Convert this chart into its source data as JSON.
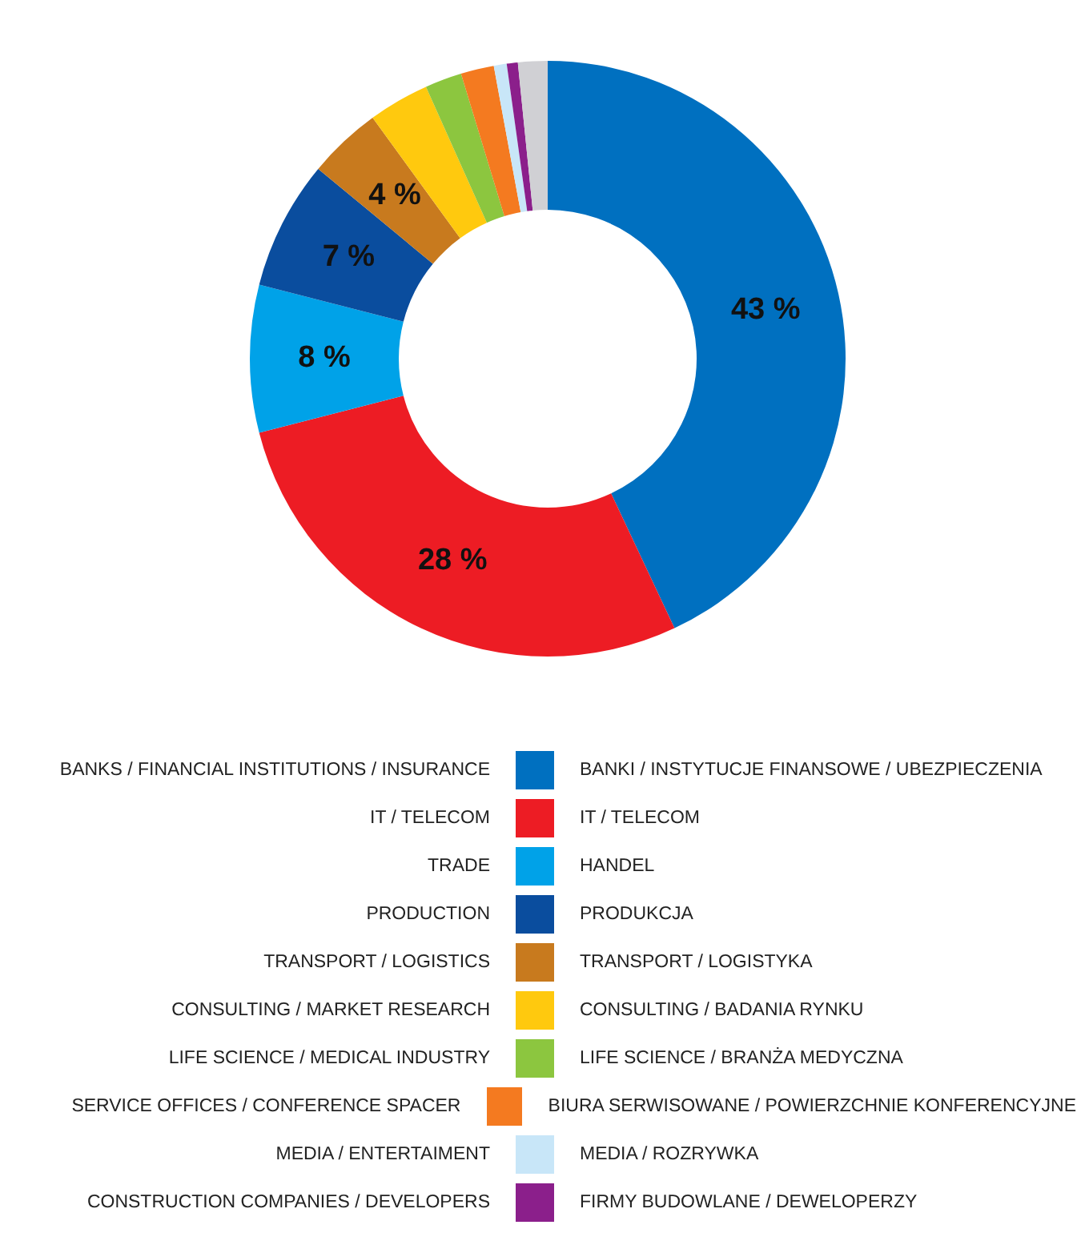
{
  "chart_data": {
    "type": "donut",
    "categories": [
      "BANKS / FINANCIAL INSTITUTIONS / INSURANCE",
      "IT / TELECOM",
      "TRADE",
      "PRODUCTION",
      "TRANSPORT / LOGISTICS",
      "CONSULTING / MARKET RESEARCH",
      "LIFE SCIENCE / MEDICAL INDUSTRY",
      "SERVICE OFFICES / CONFERENCE SPACER",
      "MEDIA / ENTERTAIMENT",
      "CONSTRUCTION COMPANIES / DEVELOPERS",
      null
    ],
    "y2_categories": [
      "BANKI / INSTYTUCJE FINANSOWE / UBEZPIECZENIA",
      "IT / TELECOM",
      "HANDEL",
      "PRODUKCJA",
      "TRANSPORT / LOGISTYKA",
      "CONSULTING / BADANIA RYNKU",
      "LIFE SCIENCE / BRANŻA MEDYCZNA",
      "BIURA SERWISOWANE / POWIERZCHNIE KONFERENCYJNE",
      "MEDIA / ROZRYWKA",
      "FIRMY BUDOWLANE / DEWELOPERZY",
      null
    ],
    "values": [
      43,
      28,
      8,
      7,
      4,
      3.3,
      2,
      1.8,
      0.7,
      0.6,
      1.6
    ],
    "colors": [
      "#0070c0",
      "#ed1c24",
      "#00a2e8",
      "#0a4d9e",
      "#c87a1e",
      "#ffc90e",
      "#8cc63f",
      "#f47a20",
      "#c8e6f8",
      "#8b1f8b",
      "#d0d0d4"
    ],
    "value_labels": [
      "43 %",
      "28 %",
      "8 %",
      "7 %",
      "4 %",
      null,
      null,
      null,
      null,
      null,
      null
    ],
    "legend": "bottom"
  }
}
